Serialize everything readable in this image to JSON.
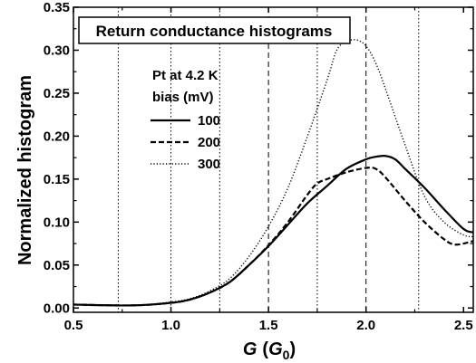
{
  "chart_data": {
    "type": "line",
    "title": "Return conductance histograms",
    "xlabel": "G",
    "xlabel_unit": "G",
    "xlabel_unit_sub": "0",
    "ylabel": "Normalized histogram",
    "xlim": [
      0.5,
      2.55
    ],
    "ylim": [
      -0.005,
      0.35
    ],
    "x_ticks": [
      "0.5",
      "1.0",
      "1.5",
      "2.0",
      "2.5"
    ],
    "y_ticks": [
      "0.00",
      "0.05",
      "0.10",
      "0.15",
      "0.20",
      "0.25",
      "0.30",
      "0.35"
    ],
    "legend_title_1": "Pt at 4.2 K",
    "legend_title_2": "bias (mV)",
    "dotted_vlines": [
      0.73,
      1.0,
      1.25,
      1.75,
      2.27
    ],
    "dashed_vlines": [
      1.5,
      2.0
    ],
    "series": [
      {
        "name": "100",
        "style": "solid",
        "x": [
          0.5,
          0.8,
          1.0,
          1.1,
          1.2,
          1.3,
          1.4,
          1.5,
          1.6,
          1.7,
          1.8,
          1.9,
          2.0,
          2.05,
          2.1,
          2.15,
          2.2,
          2.3,
          2.4,
          2.5,
          2.55
        ],
        "y": [
          0.004,
          0.003,
          0.006,
          0.01,
          0.018,
          0.03,
          0.05,
          0.072,
          0.097,
          0.122,
          0.142,
          0.162,
          0.173,
          0.176,
          0.177,
          0.173,
          0.162,
          0.14,
          0.115,
          0.092,
          0.088
        ]
      },
      {
        "name": "200",
        "style": "dashed",
        "x": [
          0.5,
          0.8,
          1.0,
          1.1,
          1.2,
          1.3,
          1.4,
          1.5,
          1.6,
          1.7,
          1.75,
          1.8,
          1.9,
          2.0,
          2.05,
          2.1,
          2.2,
          2.3,
          2.4,
          2.45,
          2.5,
          2.55
        ],
        "y": [
          0.004,
          0.003,
          0.006,
          0.01,
          0.018,
          0.03,
          0.05,
          0.073,
          0.1,
          0.132,
          0.145,
          0.15,
          0.158,
          0.163,
          0.162,
          0.152,
          0.125,
          0.1,
          0.08,
          0.074,
          0.075,
          0.078
        ]
      },
      {
        "name": "300",
        "style": "dotted",
        "x": [
          0.5,
          0.8,
          1.0,
          1.1,
          1.2,
          1.3,
          1.4,
          1.5,
          1.6,
          1.7,
          1.8,
          1.85,
          1.9,
          1.95,
          2.0,
          2.05,
          2.1,
          2.2,
          2.3,
          2.4,
          2.5,
          2.55
        ],
        "y": [
          0.004,
          0.003,
          0.007,
          0.011,
          0.02,
          0.034,
          0.06,
          0.095,
          0.14,
          0.2,
          0.265,
          0.3,
          0.31,
          0.312,
          0.305,
          0.285,
          0.255,
          0.19,
          0.13,
          0.1,
          0.085,
          0.083
        ]
      }
    ]
  }
}
